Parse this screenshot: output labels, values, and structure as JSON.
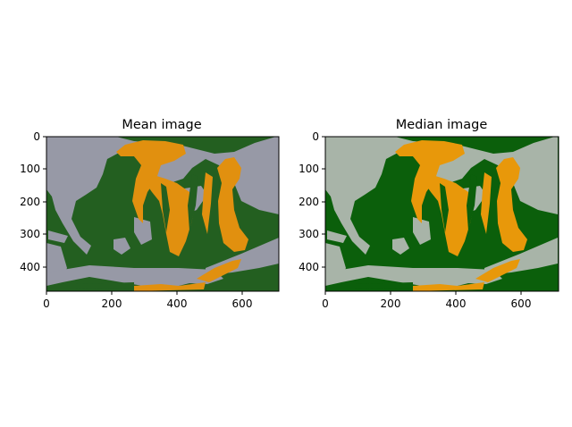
{
  "figure": {
    "background": "#ffffff",
    "panels": [
      {
        "title": "Mean image",
        "colors": {
          "background": "#235f20",
          "gray": "#9799a6",
          "orange": "#e1900f"
        },
        "x_ticks": [
          "0",
          "200",
          "400",
          "600"
        ],
        "y_ticks": [
          "0",
          "100",
          "200",
          "300",
          "400"
        ]
      },
      {
        "title": "Median image",
        "colors": {
          "background": "#0b5f0b",
          "gray": "#a8b4a8",
          "orange": "#e8980a"
        },
        "x_ticks": [
          "0",
          "200",
          "400",
          "600"
        ],
        "y_ticks": [
          "0",
          "100",
          "200",
          "300",
          "400"
        ]
      }
    ]
  },
  "chart_data": [
    {
      "type": "heatmap",
      "title": "Mean image",
      "xlabel": "",
      "ylabel": "",
      "xlim": [
        0,
        710
      ],
      "ylim": [
        475,
        0
      ],
      "x_ticks": [
        0,
        200,
        400,
        600
      ],
      "y_ticks": [
        0,
        100,
        200,
        300,
        400
      ],
      "levels": [
        "#235f20",
        "#9799a6",
        "#e1900f"
      ],
      "grid": false
    },
    {
      "type": "heatmap",
      "title": "Median image",
      "xlabel": "",
      "ylabel": "",
      "xlim": [
        0,
        710
      ],
      "ylim": [
        475,
        0
      ],
      "x_ticks": [
        0,
        200,
        400,
        600
      ],
      "y_ticks": [
        0,
        100,
        200,
        300,
        400
      ],
      "levels": [
        "#0b5f0b",
        "#a8b4a8",
        "#e8980a"
      ],
      "grid": false
    }
  ]
}
